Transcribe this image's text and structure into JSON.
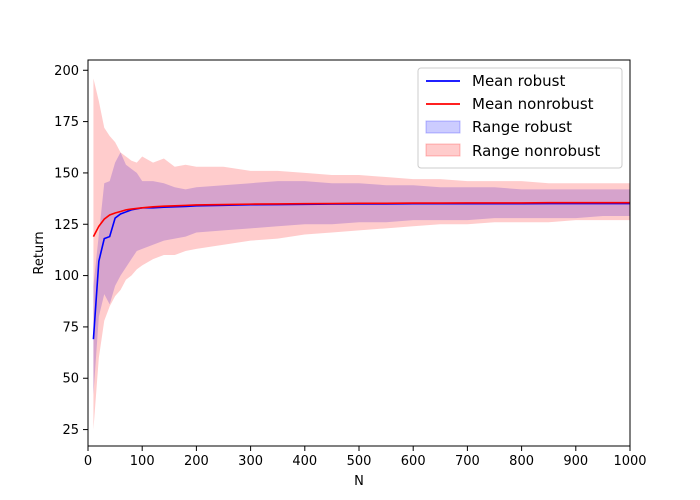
{
  "chart_data": {
    "type": "line",
    "title": "",
    "xlabel": "N",
    "ylabel": "Return",
    "xlim": [
      0,
      1000
    ],
    "ylim": [
      17,
      205
    ],
    "grid": false,
    "legend_placement": "top-right",
    "xticks": [
      0,
      100,
      200,
      300,
      400,
      500,
      600,
      700,
      800,
      900,
      1000
    ],
    "yticks": [
      25,
      50,
      75,
      100,
      125,
      150,
      175,
      200
    ],
    "bands": [
      {
        "name": "Range robust",
        "color": "#0000ff",
        "alpha": 0.2,
        "x": [
          10,
          20,
          30,
          40,
          50,
          60,
          70,
          80,
          90,
          100,
          120,
          140,
          160,
          180,
          200,
          250,
          300,
          350,
          400,
          450,
          500,
          550,
          600,
          650,
          700,
          750,
          800,
          850,
          900,
          950,
          1000
        ],
        "upper": [
          95,
          120,
          145,
          146,
          155,
          160,
          154,
          152,
          150,
          146,
          146,
          145,
          143,
          142,
          143,
          144,
          145,
          146,
          146,
          145,
          145,
          144,
          144,
          143,
          143,
          143,
          142,
          142,
          142,
          142,
          142
        ],
        "lower": [
          42,
          80,
          91,
          86,
          95,
          100,
          104,
          108,
          112,
          113,
          115,
          117,
          118,
          119,
          121,
          122,
          123,
          124,
          125,
          125,
          126,
          126,
          127,
          127,
          127,
          128,
          128,
          128,
          128,
          129,
          129
        ]
      },
      {
        "name": "Range nonrobust",
        "color": "#ff0000",
        "alpha": 0.2,
        "x": [
          10,
          20,
          30,
          40,
          50,
          60,
          70,
          80,
          90,
          100,
          120,
          140,
          160,
          180,
          200,
          250,
          300,
          350,
          400,
          450,
          500,
          550,
          600,
          650,
          700,
          750,
          800,
          850,
          900,
          950,
          1000
        ],
        "upper": [
          196,
          185,
          172,
          168,
          165,
          160,
          158,
          156,
          155,
          158,
          155,
          157,
          153,
          154,
          153,
          153,
          151,
          151,
          150,
          149,
          149,
          148,
          147,
          147,
          146,
          146,
          146,
          145,
          145,
          145,
          145
        ],
        "lower": [
          25,
          60,
          78,
          85,
          90,
          93,
          98,
          100,
          103,
          105,
          108,
          110,
          110,
          112,
          113,
          115,
          117,
          118,
          120,
          121,
          122,
          123,
          124,
          125,
          125,
          126,
          126,
          126,
          127,
          127,
          127
        ]
      }
    ],
    "series": [
      {
        "name": "Mean robust",
        "color": "#0000ff",
        "x": [
          10,
          20,
          30,
          40,
          50,
          60,
          70,
          80,
          90,
          100,
          120,
          140,
          160,
          180,
          200,
          250,
          300,
          350,
          400,
          450,
          500,
          550,
          600,
          650,
          700,
          750,
          800,
          850,
          900,
          950,
          1000
        ],
        "values": [
          69,
          107,
          118,
          119,
          128,
          130,
          131,
          132,
          132.5,
          133,
          133,
          133.3,
          133.5,
          133.7,
          134,
          134.2,
          134.5,
          134.6,
          134.7,
          134.8,
          134.9,
          134.9,
          135,
          135,
          135,
          135,
          135,
          135.1,
          135.1,
          135.1,
          135.1
        ]
      },
      {
        "name": "Mean nonrobust",
        "color": "#ff0000",
        "x": [
          10,
          20,
          30,
          40,
          50,
          60,
          70,
          80,
          90,
          100,
          120,
          140,
          160,
          180,
          200,
          250,
          300,
          350,
          400,
          450,
          500,
          550,
          600,
          650,
          700,
          750,
          800,
          850,
          900,
          950,
          1000
        ],
        "values": [
          119,
          124,
          127.5,
          129.5,
          130.5,
          131.2,
          132,
          132.4,
          132.7,
          133,
          133.5,
          133.8,
          134,
          134.2,
          134.4,
          134.6,
          134.8,
          134.9,
          135,
          135.1,
          135.2,
          135.2,
          135.3,
          135.3,
          135.4,
          135.4,
          135.4,
          135.5,
          135.5,
          135.5,
          135.5
        ]
      }
    ],
    "legend": [
      "Mean robust",
      "Mean nonrobust",
      "Range robust",
      "Range nonrobust"
    ]
  }
}
